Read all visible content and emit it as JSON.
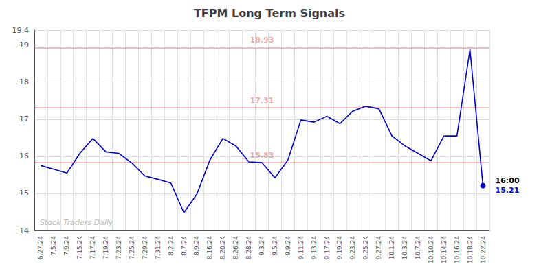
{
  "chart_data": {
    "type": "line",
    "title": "TFPM Long Term Signals",
    "categories": [
      "6.27.24",
      "7.5.24",
      "7.9.24",
      "7.15.24",
      "7.17.24",
      "7.19.24",
      "7.23.24",
      "7.25.24",
      "7.29.24",
      "7.31.24",
      "8.2.24",
      "8.7.24",
      "8.9.24",
      "8.16.24",
      "8.20.24",
      "8.26.24",
      "8.28.24",
      "9.3.24",
      "9.5.24",
      "9.9.24",
      "9.11.24",
      "9.13.24",
      "9.17.24",
      "9.19.24",
      "9.23.24",
      "9.25.24",
      "9.27.24",
      "10.1.24",
      "10.3.24",
      "10.7.24",
      "10.10.24",
      "10.14.24",
      "10.16.24",
      "10.18.24",
      "10.22.24"
    ],
    "values": [
      15.75,
      15.65,
      15.55,
      16.08,
      16.48,
      16.12,
      16.08,
      15.82,
      15.47,
      15.38,
      15.28,
      14.48,
      14.98,
      15.9,
      16.48,
      16.28,
      15.85,
      15.83,
      15.42,
      15.9,
      16.98,
      16.92,
      17.08,
      16.88,
      17.22,
      17.35,
      17.28,
      16.55,
      16.28,
      16.08,
      15.88,
      16.55,
      16.55,
      18.88,
      15.21
    ],
    "color": "#0000cc",
    "ylim": [
      14,
      19.4
    ],
    "yticks": [
      14,
      15,
      16,
      17,
      18,
      19
    ],
    "grid": true,
    "hlines": [
      {
        "y": 18.93,
        "label": "18.93",
        "color": "#cc0000"
      },
      {
        "y": 17.31,
        "label": "17.31",
        "color": "#cc0000"
      },
      {
        "y": 15.83,
        "label": "15.83",
        "color": "#cc0000"
      }
    ],
    "annotations": [
      {
        "text": "16:00",
        "y": 15.21,
        "color": "#000000"
      },
      {
        "text": "15.21",
        "y": 15.21,
        "color": "#0000ff"
      }
    ],
    "watermark": "Stock Traders Daily"
  }
}
